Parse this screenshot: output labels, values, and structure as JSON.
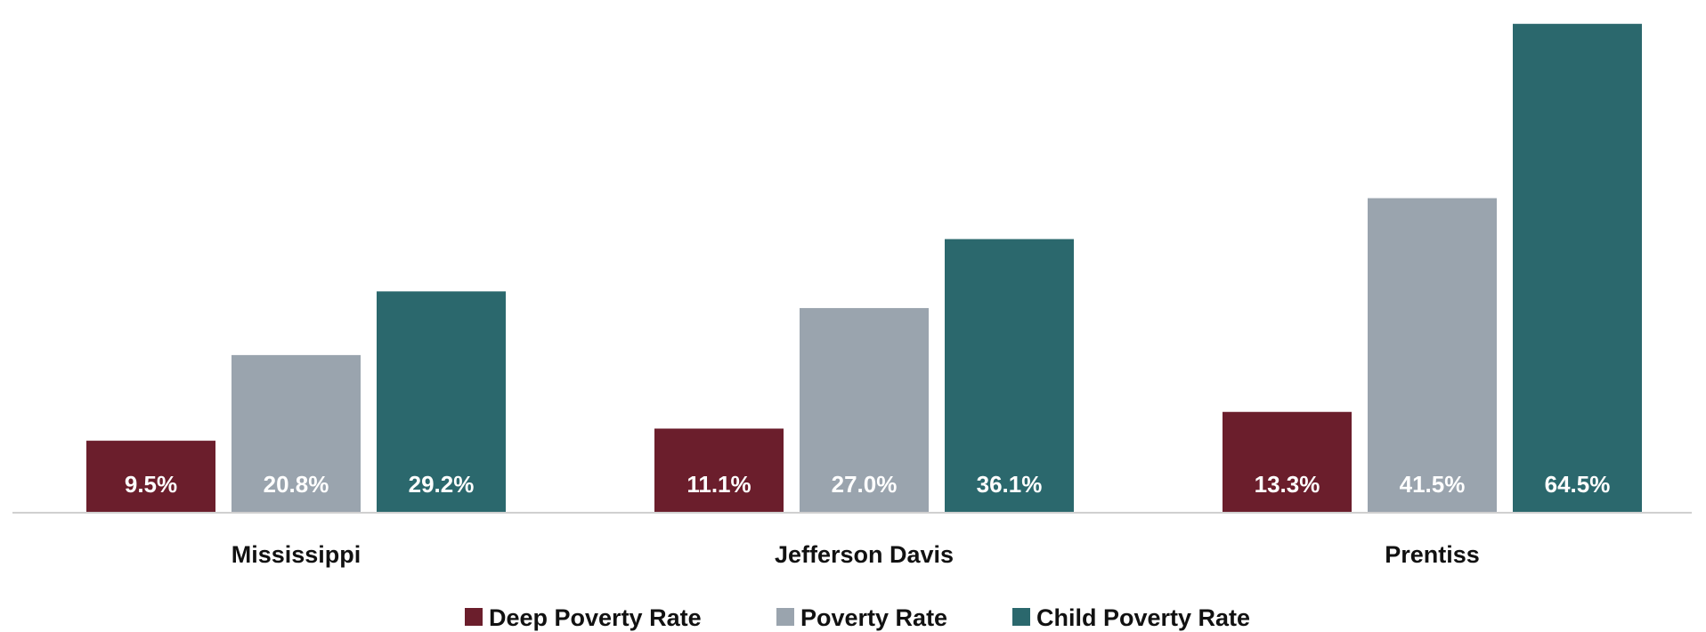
{
  "chart_data": {
    "type": "bar",
    "categories": [
      "Mississippi",
      "Jefferson Davis",
      "Prentiss"
    ],
    "series": [
      {
        "name": "Deep Poverty Rate",
        "color": "#6b1e2c",
        "values": [
          9.5,
          11.1,
          13.3
        ],
        "labels": [
          "9.5%",
          "11.1%",
          "13.3%"
        ]
      },
      {
        "name": "Poverty Rate",
        "color": "#9aa4ae",
        "values": [
          20.8,
          27.0,
          41.5
        ],
        "labels": [
          "20.8%",
          "27.0%",
          "41.5%"
        ]
      },
      {
        "name": "Child Poverty Rate",
        "color": "#2b686d",
        "values": [
          29.2,
          36.1,
          64.5
        ],
        "labels": [
          "29.2%",
          "36.1%",
          "64.5%"
        ]
      }
    ],
    "ylim": [
      0,
      66
    ],
    "grid": false,
    "legend_position": "bottom"
  }
}
